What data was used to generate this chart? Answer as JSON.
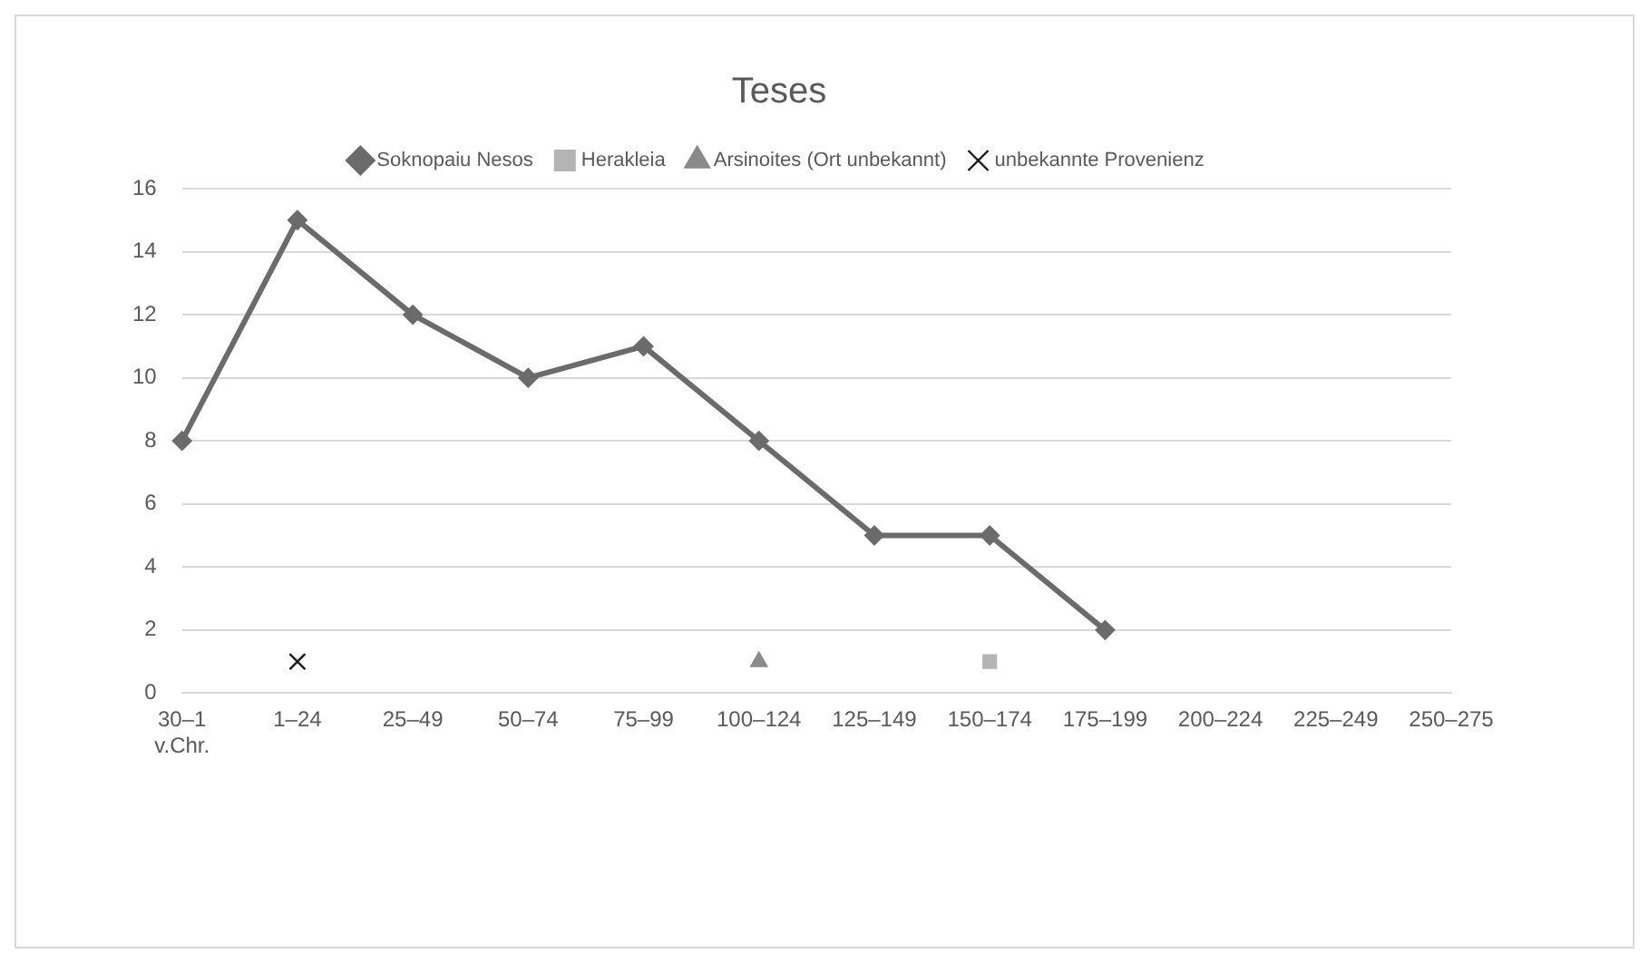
{
  "chart_data": {
    "type": "line",
    "title": "Teses",
    "categories": [
      "30–1 v.Chr.",
      "1–24",
      "25–49",
      "50–74",
      "75–99",
      "100–124",
      "125–149",
      "150–174",
      "175–199",
      "200–224",
      "225–249",
      "250–275"
    ],
    "series": [
      {
        "name": "Soknopaiu Nesos",
        "color": "#6b6b6b",
        "marker": "diamond",
        "values": [
          8,
          15,
          12,
          10,
          11,
          8,
          5,
          5,
          2,
          null,
          null,
          null
        ]
      },
      {
        "name": "Herakleia",
        "color": "#b4b4b4",
        "marker": "square",
        "values": [
          null,
          null,
          null,
          null,
          null,
          null,
          null,
          1,
          null,
          null,
          null,
          null
        ]
      },
      {
        "name": "Arsinoites (Ort unbekannt)",
        "color": "#8a8a8a",
        "marker": "triangle",
        "values": [
          null,
          null,
          null,
          null,
          null,
          1,
          null,
          null,
          null,
          null,
          null,
          null
        ]
      },
      {
        "name": "unbekannte Provenienz",
        "color": "#1a1a1a",
        "marker": "cross",
        "values": [
          null,
          1,
          null,
          null,
          null,
          null,
          null,
          null,
          null,
          null,
          null,
          null
        ]
      }
    ],
    "ylim": [
      0,
      16
    ],
    "yticks": [
      0,
      2,
      4,
      6,
      8,
      10,
      12,
      14,
      16
    ],
    "grid": "y",
    "legend": "top"
  }
}
